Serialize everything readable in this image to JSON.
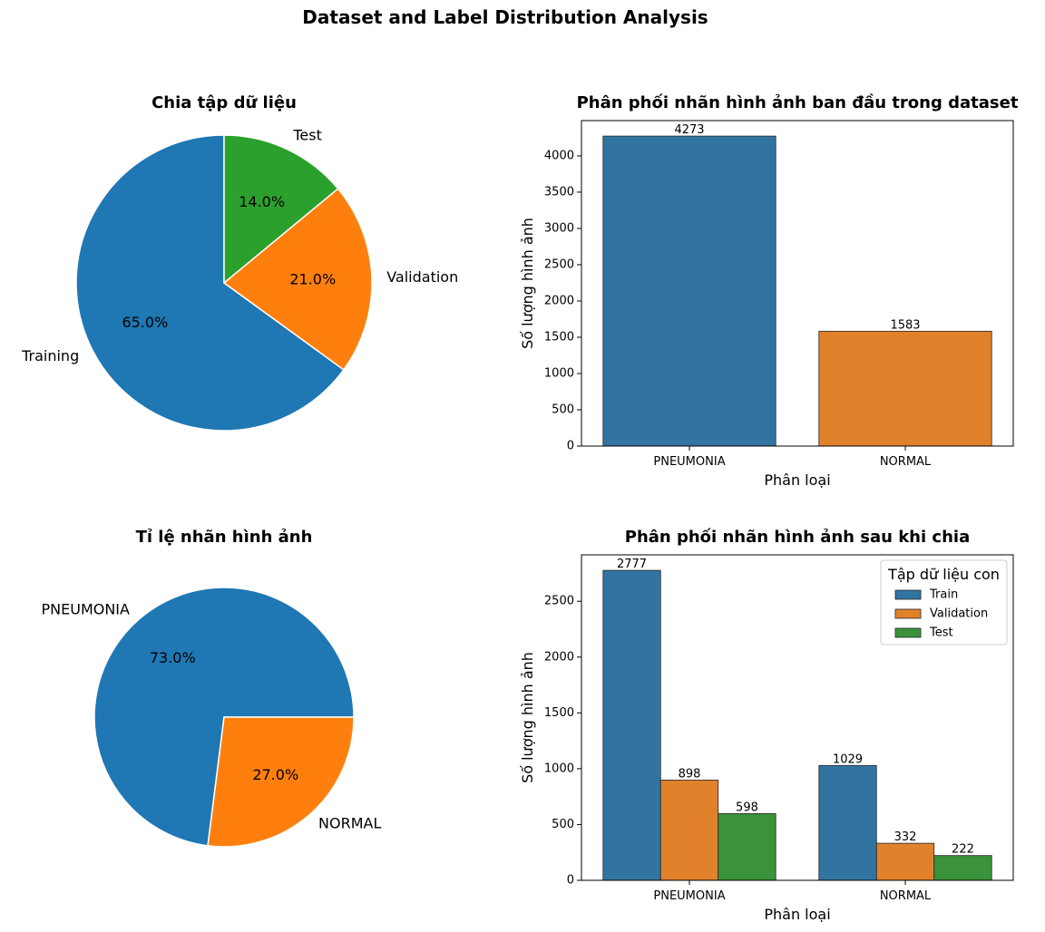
{
  "suptitle": "Dataset and Label Distribution Analysis",
  "chart_data": [
    {
      "type": "pie",
      "title": "Chia tập dữ liệu",
      "labels": [
        "Training",
        "Validation",
        "Test"
      ],
      "values": [
        65.0,
        21.0,
        14.0
      ],
      "autopct": [
        "65.0%",
        "21.0%",
        "14.0%"
      ],
      "colors": [
        "#1f77b4",
        "#ff7f0e",
        "#2ca02c"
      ]
    },
    {
      "type": "bar",
      "title": "Phân phối nhãn hình ảnh ban đầu trong dataset",
      "categories": [
        "PNEUMONIA",
        "NORMAL"
      ],
      "values": [
        4273,
        1583
      ],
      "colors": [
        "#3274a1",
        "#e1812c"
      ],
      "xlabel": "Phân loại",
      "ylabel": "Số lượng hình ảnh",
      "ylim": [
        0,
        4486.65
      ],
      "yticks": [
        0,
        500,
        1000,
        1500,
        2000,
        2500,
        3000,
        3500,
        4000
      ]
    },
    {
      "type": "pie",
      "title": "Tỉ lệ nhãn hình ảnh",
      "labels": [
        "PNEUMONIA",
        "NORMAL"
      ],
      "values": [
        73.0,
        27.0
      ],
      "autopct": [
        "73.0%",
        "27.0%"
      ],
      "colors": [
        "#1f77b4",
        "#ff7f0e"
      ]
    },
    {
      "type": "bar",
      "title": "Phân phối nhãn hình ảnh sau khi chia",
      "categories": [
        "PNEUMONIA",
        "NORMAL"
      ],
      "series": [
        {
          "name": "Train",
          "values": [
            2777,
            1029
          ],
          "color": "#3274a1"
        },
        {
          "name": "Validation",
          "values": [
            898,
            332
          ],
          "color": "#e1812c"
        },
        {
          "name": "Test",
          "values": [
            598,
            222
          ],
          "color": "#3a923a"
        }
      ],
      "xlabel": "Phân loại",
      "ylabel": "Số lượng hình ảnh",
      "ylim": [
        0,
        2915.85
      ],
      "yticks": [
        0,
        500,
        1000,
        1500,
        2000,
        2500
      ],
      "legend_title": "Tập dữ liệu con",
      "legend_position": "top-right"
    }
  ]
}
